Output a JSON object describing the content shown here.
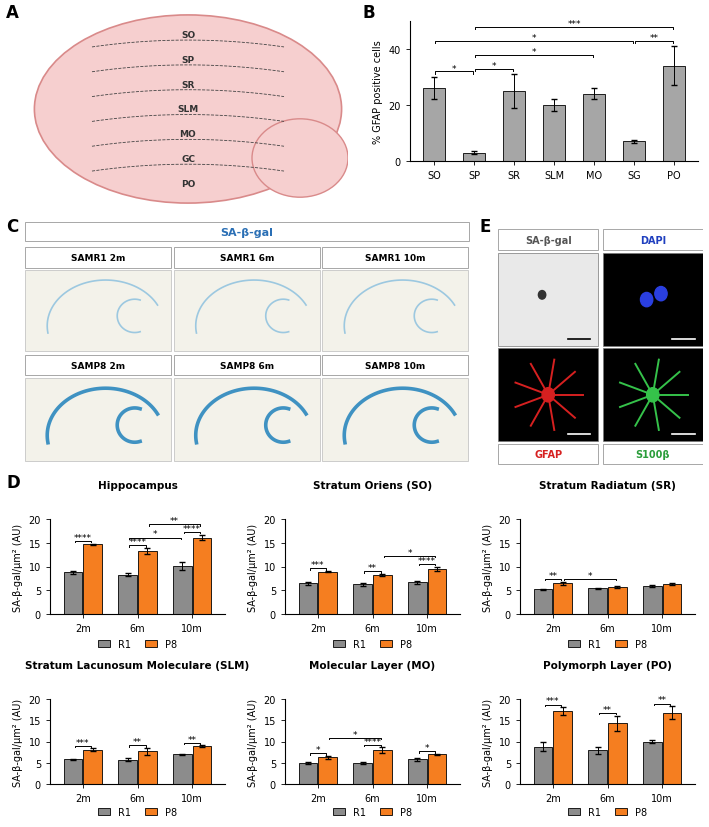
{
  "panel_labels": [
    "A",
    "B",
    "C",
    "D",
    "E"
  ],
  "panel_a": {
    "type": "diagram",
    "layers": [
      "SO",
      "SP",
      "SR",
      "SLM",
      "MO",
      "GC",
      "PO"
    ]
  },
  "panel_c": {
    "title": "SA-β-gal",
    "title_color": "#2a6fb5",
    "images": [
      "SAMR1 2m",
      "SAMR1 6m",
      "SAMR1 10m",
      "SAMP8 2m",
      "SAMP8 6m",
      "SAMP8 10m"
    ]
  },
  "panel_e": {
    "images": [
      {
        "label": "SA-β-gal",
        "color": "#555555"
      },
      {
        "label": "DAPI",
        "color": "#1f3fbf"
      },
      {
        "label": "GFAP",
        "color": "#d62020"
      },
      {
        "label": "S100β",
        "color": "#2a9d3a"
      }
    ]
  },
  "chart_data": [
    {
      "type": "bar",
      "ylabel": "% GFAP positive cells",
      "categories": [
        "SO",
        "SP",
        "SR",
        "SLM",
        "MO",
        "SG",
        "PO"
      ],
      "values": [
        26,
        3,
        25,
        20,
        24,
        7,
        34
      ],
      "errors": [
        4,
        0.5,
        6,
        2,
        2,
        0.5,
        7
      ],
      "color": "#a6a6a6",
      "ylim": [
        0,
        50
      ],
      "yticks": [
        0,
        20,
        40
      ],
      "significance": [
        {
          "from": "SO",
          "to": "SP",
          "label": "*"
        },
        {
          "from": "SP",
          "to": "SR",
          "label": "*"
        },
        {
          "from": "SG",
          "to": "PO",
          "label": "**"
        },
        {
          "from": "SP",
          "to": "MO",
          "label": "*"
        },
        {
          "from": "SO",
          "to": "SG",
          "label": "*"
        },
        {
          "from": "SP",
          "to": "PO",
          "label": "***"
        }
      ]
    },
    {
      "type": "bar",
      "title": "Hippocampus",
      "ylabel": "SA-β-gal/μm² (AU)",
      "categories": [
        "2m",
        "6m",
        "10m"
      ],
      "series": [
        {
          "name": "R1",
          "color": "#8c8c8c",
          "values": [
            8.8,
            8.3,
            10.1
          ],
          "errors": [
            0.3,
            0.3,
            0.8
          ]
        },
        {
          "name": "P8",
          "color": "#f57e20",
          "values": [
            14.7,
            13.3,
            16.1
          ],
          "errors": [
            0.1,
            0.6,
            0.6
          ]
        }
      ],
      "ylim": [
        0,
        20
      ],
      "yticks": [
        0,
        5,
        10,
        15,
        20
      ],
      "legend": "upper center",
      "significance": [
        {
          "from": [
            "R1",
            "2m"
          ],
          "to": [
            "P8",
            "2m"
          ],
          "label": "****"
        },
        {
          "from": [
            "R1",
            "6m"
          ],
          "to": [
            "P8",
            "6m"
          ],
          "label": "****"
        },
        {
          "from": [
            "R1",
            "10m"
          ],
          "to": [
            "P8",
            "10m"
          ],
          "label": "****"
        },
        {
          "from": [
            "R1",
            "6m"
          ],
          "to": [
            "R1",
            "10m"
          ],
          "label": "*"
        },
        {
          "from": [
            "P8",
            "6m"
          ],
          "to": [
            "P8",
            "10m"
          ],
          "label": "**"
        }
      ]
    },
    {
      "type": "bar",
      "title": "Stratum Oriens (SO)",
      "ylabel": "SA-β-gal/μm² (AU)",
      "categories": [
        "2m",
        "6m",
        "10m"
      ],
      "series": [
        {
          "name": "R1",
          "color": "#8c8c8c",
          "values": [
            6.5,
            6.3,
            6.7
          ],
          "errors": [
            0.3,
            0.3,
            0.3
          ]
        },
        {
          "name": "P8",
          "color": "#f57e20",
          "values": [
            8.9,
            8.2,
            9.5
          ],
          "errors": [
            0.1,
            0.2,
            0.5
          ]
        }
      ],
      "ylim": [
        0,
        20
      ],
      "yticks": [
        0,
        5,
        10,
        15,
        20
      ],
      "legend": "upper center",
      "significance": [
        {
          "from": [
            "R1",
            "2m"
          ],
          "to": [
            "P8",
            "2m"
          ],
          "label": "***"
        },
        {
          "from": [
            "R1",
            "6m"
          ],
          "to": [
            "P8",
            "6m"
          ],
          "label": "**"
        },
        {
          "from": [
            "R1",
            "10m"
          ],
          "to": [
            "P8",
            "10m"
          ],
          "label": "****"
        },
        {
          "from": [
            "P8",
            "6m"
          ],
          "to": [
            "P8",
            "10m"
          ],
          "label": "*"
        }
      ]
    },
    {
      "type": "bar",
      "title": "Stratum Radiatum (SR)",
      "ylabel": "SA-β-gal/μm² (AU)",
      "categories": [
        "2m",
        "6m",
        "10m"
      ],
      "series": [
        {
          "name": "R1",
          "color": "#8c8c8c",
          "values": [
            5.2,
            5.4,
            5.9
          ],
          "errors": [
            0.1,
            0.1,
            0.3
          ]
        },
        {
          "name": "P8",
          "color": "#f57e20",
          "values": [
            6.5,
            5.6,
            6.4
          ],
          "errors": [
            0.3,
            0.2,
            0.2
          ]
        }
      ],
      "ylim": [
        0,
        20
      ],
      "yticks": [
        0,
        5,
        10,
        15,
        20
      ],
      "legend": "upper center",
      "significance": [
        {
          "from": [
            "R1",
            "2m"
          ],
          "to": [
            "P8",
            "2m"
          ],
          "label": "**"
        },
        {
          "from": [
            "P8",
            "2m"
          ],
          "to": [
            "P8",
            "6m"
          ],
          "label": "*"
        }
      ]
    },
    {
      "type": "bar",
      "title": "Stratum Lacunosum Moleculare (SLM)",
      "ylabel": "SA-β-gal/μm² (AU)",
      "categories": [
        "2m",
        "6m",
        "10m"
      ],
      "series": [
        {
          "name": "R1",
          "color": "#8c8c8c",
          "values": [
            5.8,
            5.7,
            7.0
          ],
          "errors": [
            0.1,
            0.4,
            0.1
          ]
        },
        {
          "name": "P8",
          "color": "#f57e20",
          "values": [
            8.1,
            7.7,
            8.9
          ],
          "errors": [
            0.3,
            0.8,
            0.2
          ]
        }
      ],
      "ylim": [
        0,
        20
      ],
      "yticks": [
        0,
        5,
        10,
        15,
        20
      ],
      "legend": "upper center",
      "significance": [
        {
          "from": [
            "R1",
            "2m"
          ],
          "to": [
            "P8",
            "2m"
          ],
          "label": "***"
        },
        {
          "from": [
            "R1",
            "6m"
          ],
          "to": [
            "P8",
            "6m"
          ],
          "label": "**"
        },
        {
          "from": [
            "R1",
            "10m"
          ],
          "to": [
            "P8",
            "10m"
          ],
          "label": "**"
        }
      ]
    },
    {
      "type": "bar",
      "title": "Molecular Layer (MO)",
      "ylabel": "SA-β-gal/μm² (AU)",
      "categories": [
        "2m",
        "6m",
        "10m"
      ],
      "series": [
        {
          "name": "R1",
          "color": "#8c8c8c",
          "values": [
            5.0,
            5.0,
            5.8
          ],
          "errors": [
            0.2,
            0.2,
            0.3
          ]
        },
        {
          "name": "P8",
          "color": "#f57e20",
          "values": [
            6.3,
            7.9,
            7.0
          ],
          "errors": [
            0.3,
            0.7,
            0.1
          ]
        }
      ],
      "ylim": [
        0,
        20
      ],
      "yticks": [
        0,
        5,
        10,
        15,
        20
      ],
      "legend": "upper center",
      "significance": [
        {
          "from": [
            "R1",
            "2m"
          ],
          "to": [
            "P8",
            "2m"
          ],
          "label": "*"
        },
        {
          "from": [
            "R1",
            "6m"
          ],
          "to": [
            "P8",
            "6m"
          ],
          "label": "****"
        },
        {
          "from": [
            "R1",
            "10m"
          ],
          "to": [
            "P8",
            "10m"
          ],
          "label": "*"
        },
        {
          "from": [
            "P8",
            "2m"
          ],
          "to": [
            "P8",
            "6m"
          ],
          "label": "*"
        }
      ]
    },
    {
      "type": "bar",
      "title": "Polymorph Layer (PO)",
      "ylabel": "SA-β-gal/μm² (AU)",
      "categories": [
        "2m",
        "6m",
        "10m"
      ],
      "series": [
        {
          "name": "R1",
          "color": "#8c8c8c",
          "values": [
            8.8,
            7.9,
            10.0
          ],
          "errors": [
            1.0,
            0.8,
            0.4
          ]
        },
        {
          "name": "P8",
          "color": "#f57e20",
          "values": [
            17.2,
            14.3,
            16.8
          ],
          "errors": [
            0.9,
            1.8,
            1.5
          ]
        }
      ],
      "ylim": [
        0,
        20
      ],
      "yticks": [
        0,
        5,
        10,
        15,
        20
      ],
      "legend": "upper center",
      "significance": [
        {
          "from": [
            "R1",
            "2m"
          ],
          "to": [
            "P8",
            "2m"
          ],
          "label": "***"
        },
        {
          "from": [
            "R1",
            "6m"
          ],
          "to": [
            "P8",
            "6m"
          ],
          "label": "**"
        },
        {
          "from": [
            "R1",
            "10m"
          ],
          "to": [
            "P8",
            "10m"
          ],
          "label": "**"
        }
      ]
    }
  ]
}
